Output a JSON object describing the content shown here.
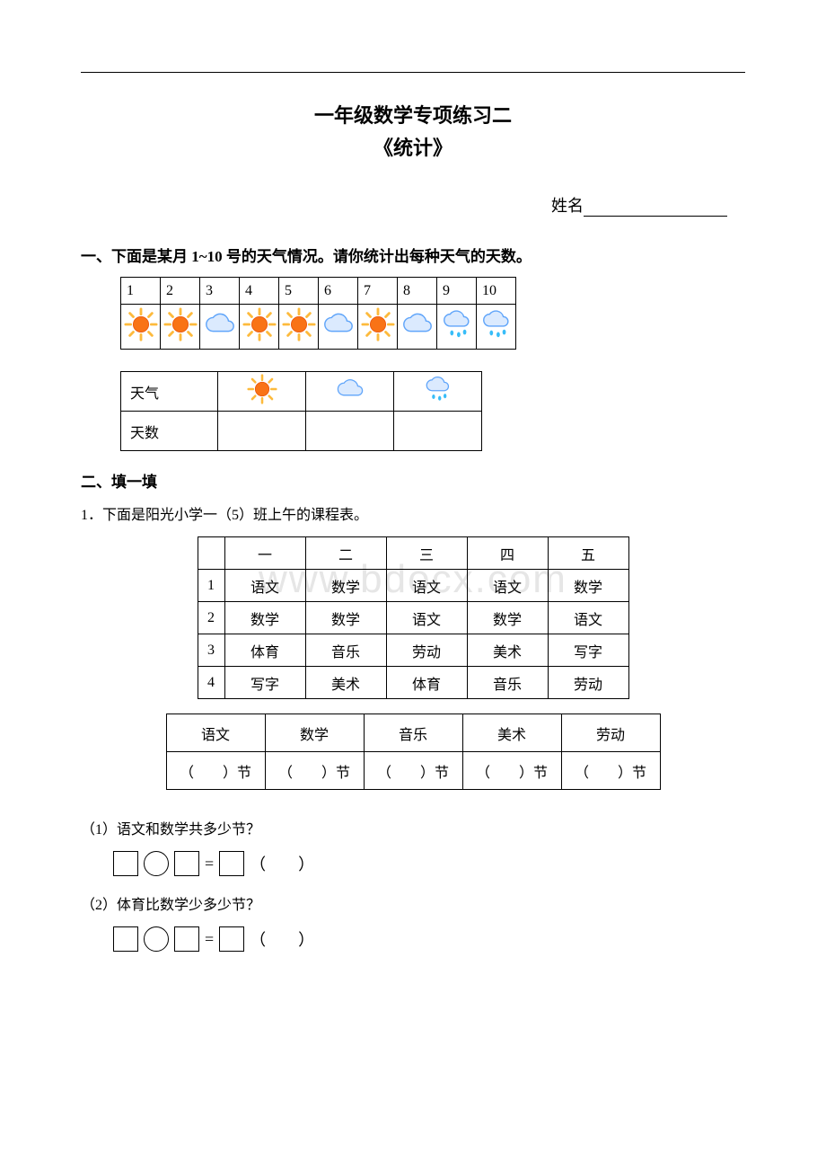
{
  "title": "一年级数学专项练习二",
  "subtitle": "《统计》",
  "name_label": "姓名",
  "section1": {
    "heading": "一、下面是某月 1~10 号的天气情况。请你统计出每种天气的天数。",
    "days": [
      "1",
      "2",
      "3",
      "4",
      "5",
      "6",
      "7",
      "8",
      "9",
      "10"
    ],
    "icons": [
      "sun",
      "sun",
      "cloud",
      "sun",
      "sun",
      "cloud",
      "sun",
      "cloud",
      "rain",
      "rain"
    ],
    "summary_row_label": "天气",
    "summary_count_label": "天数",
    "summary_icons": [
      "sun",
      "cloud",
      "rain"
    ]
  },
  "section2": {
    "heading": "二、填一填",
    "q1_intro": "1．下面是阳光小学一（5）班上午的课程表。",
    "schedule": {
      "daynames": [
        "一",
        "二",
        "三",
        "四",
        "五"
      ],
      "rows": [
        [
          "1",
          "语文",
          "数学",
          "语文",
          "语文",
          "数学"
        ],
        [
          "2",
          "数学",
          "数学",
          "语文",
          "数学",
          "语文"
        ],
        [
          "3",
          "体育",
          "音乐",
          "劳动",
          "美术",
          "写字"
        ],
        [
          "4",
          "写字",
          "美术",
          "体育",
          "音乐",
          "劳动"
        ]
      ]
    },
    "count_subjects": [
      "语文",
      "数学",
      "音乐",
      "美术",
      "劳动"
    ],
    "count_unit": "（　　）节",
    "sub1": "（1）语文和数学共多少节？",
    "sub2": "（2）体育比数学少多少节？",
    "eq_eq": "=",
    "eq_paren": "（　　）"
  },
  "watermark": "www.bdocx.com",
  "colors": {
    "sun_core": "#f97316",
    "sun_ray": "#fdba3c",
    "cloud_fill": "#dbeafe",
    "cloud_stroke": "#60a5fa",
    "rain_drop": "#38bdf8"
  }
}
